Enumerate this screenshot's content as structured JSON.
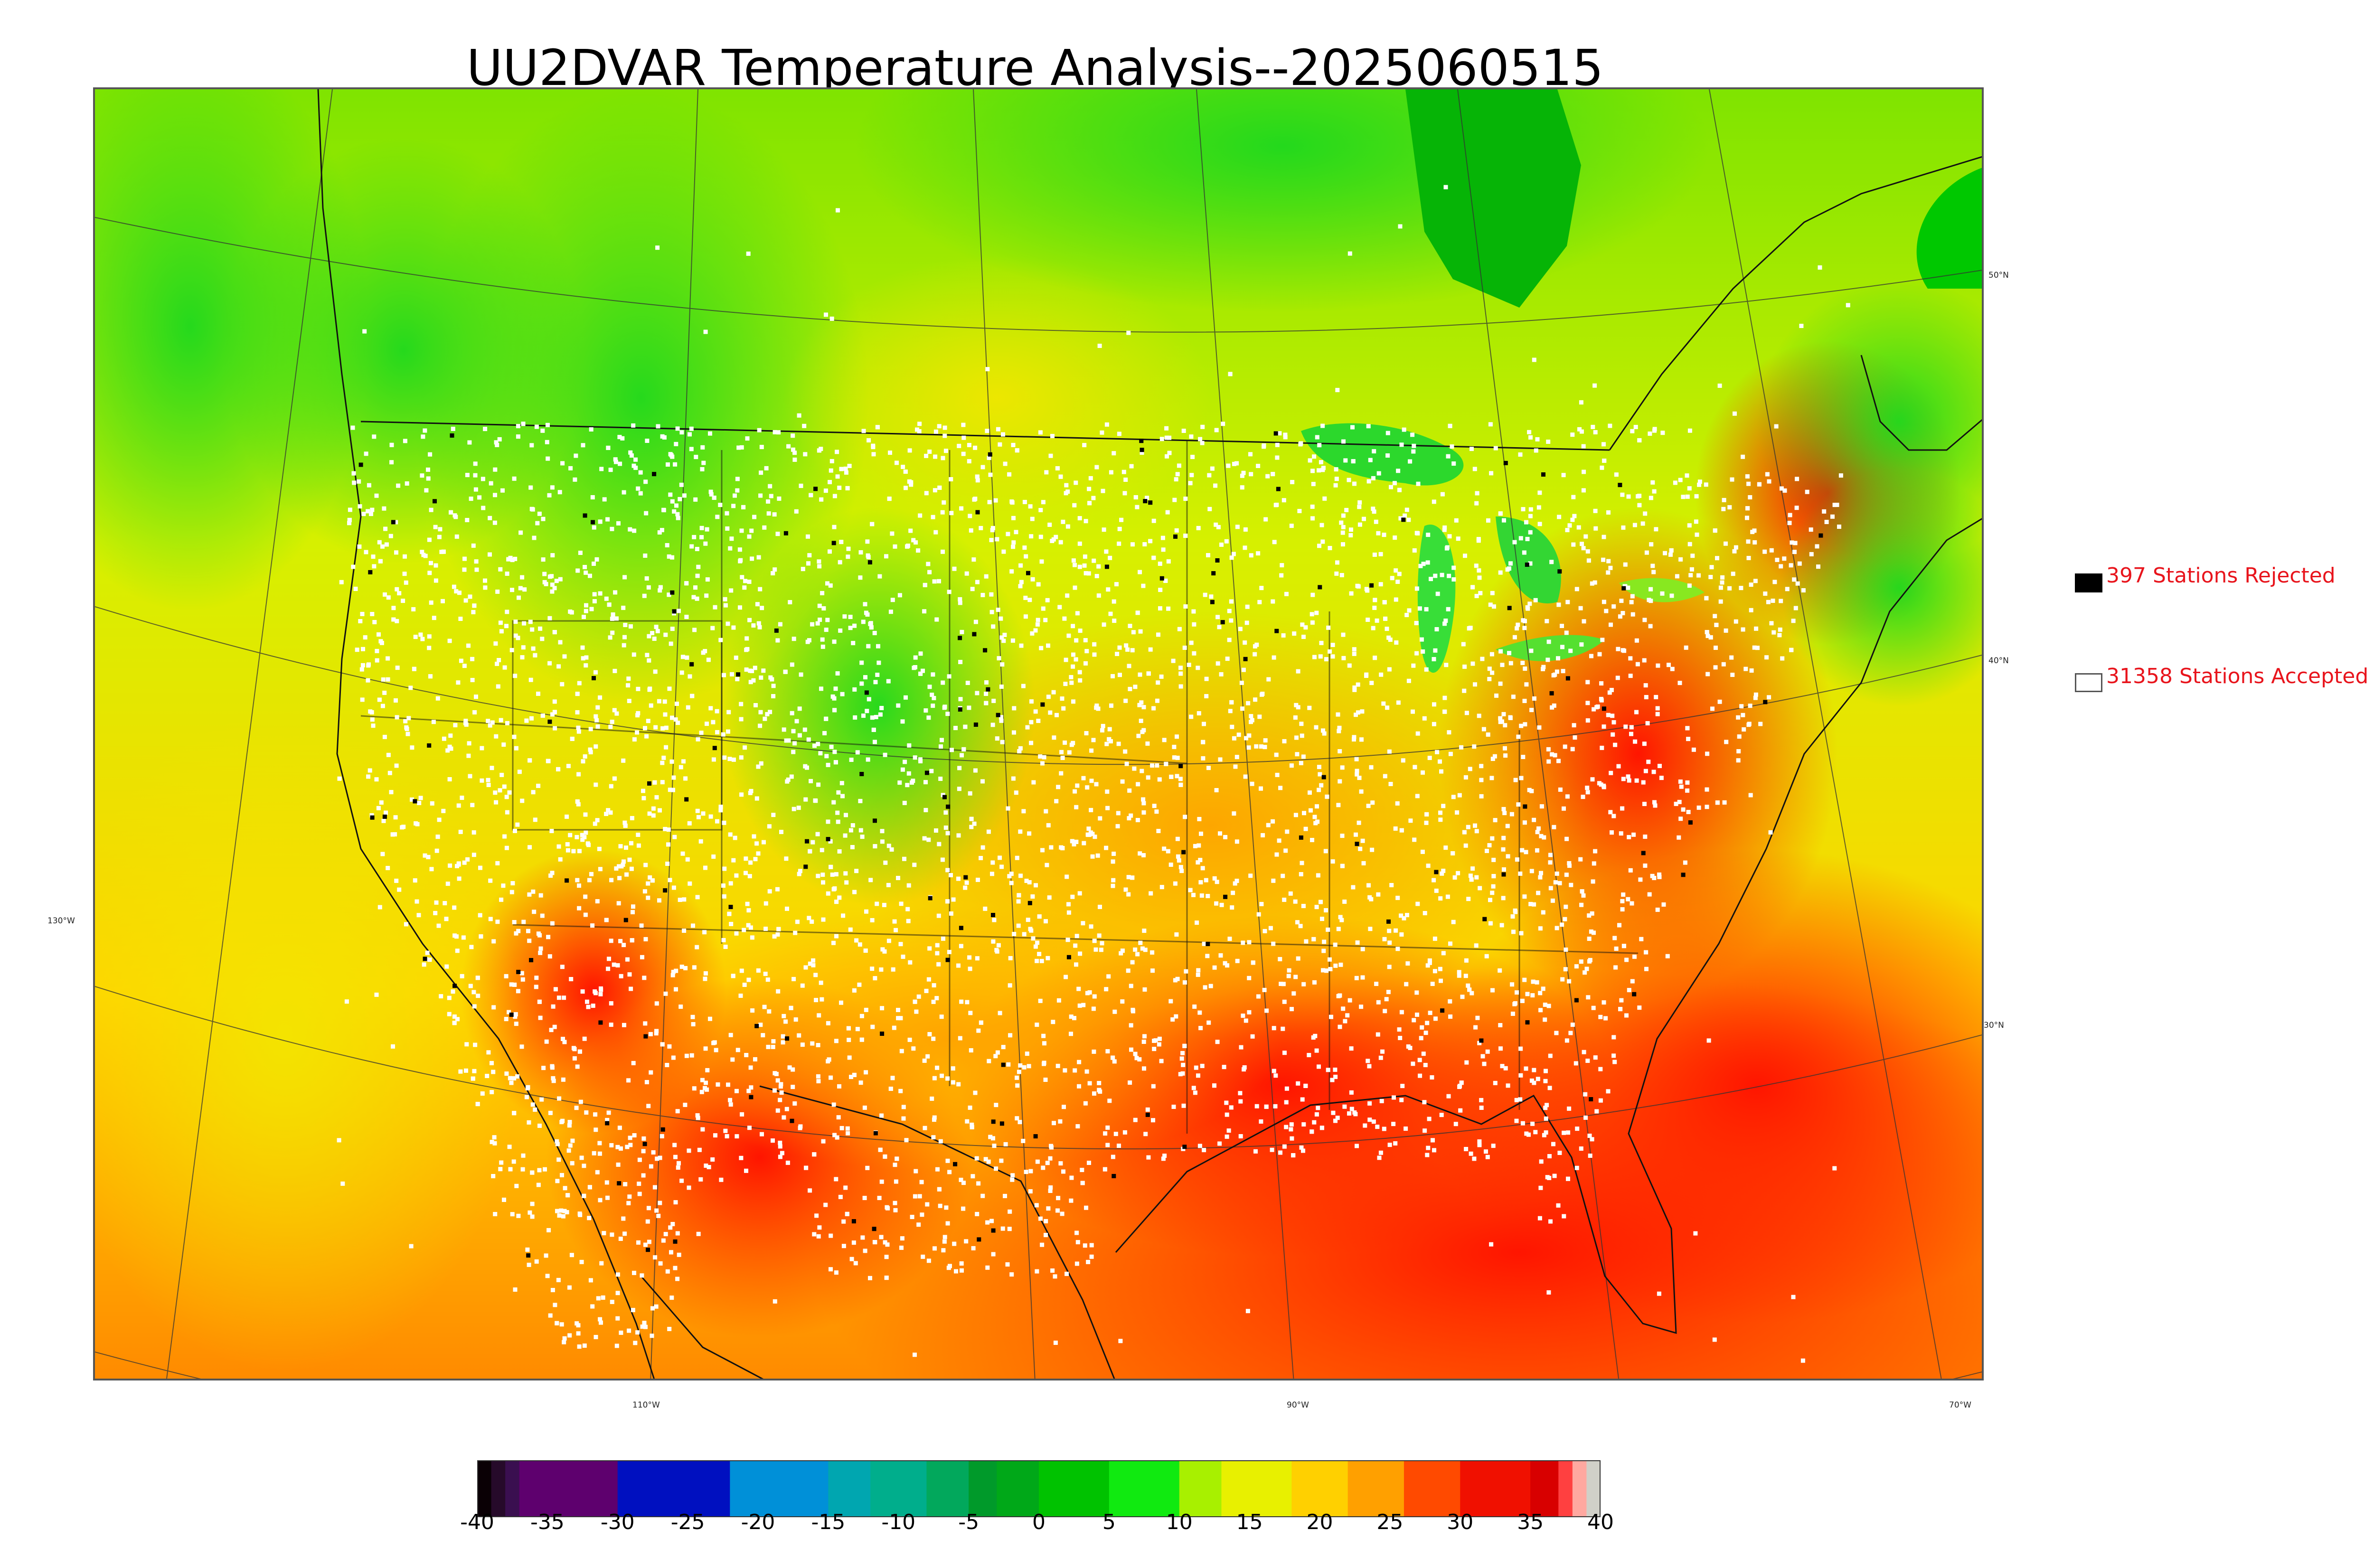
{
  "title": "UU2DVAR Temperature Analysis--2025060515",
  "map": {
    "latitude_labels": [
      {
        "text": "50°N"
      },
      {
        "text": "40°N"
      },
      {
        "text": "30°N"
      }
    ],
    "longitude_labels": [
      {
        "text": "110°W"
      },
      {
        "text": "90°W"
      },
      {
        "text": "70°W"
      },
      {
        "text": "130°W"
      }
    ],
    "colors": {
      "cool": "#2fd52a",
      "mild": "#d4f000",
      "warm": "#ffb000",
      "hot": "#ff1a00",
      "water_cold": "#00b800",
      "station_accepted": "#ffffff",
      "station_rejected": "#000000"
    }
  },
  "legend": {
    "rejected": {
      "count": 397,
      "label": "397 Stations Rejected",
      "swatch_color": "#000000"
    },
    "accepted": {
      "count": 31358,
      "label": "31358 Stations Accepted",
      "swatch_color": "#ffffff"
    }
  },
  "colorbar": {
    "min": -40,
    "max": 40,
    "ticks": [
      "-40",
      "-35",
      "-30",
      "-25",
      "-20",
      "-15",
      "-10",
      "-5",
      "0",
      "5",
      "10",
      "15",
      "20",
      "25",
      "30",
      "35",
      "40"
    ],
    "bands": [
      {
        "from": -40,
        "to": -39,
        "color": "#0a0005"
      },
      {
        "from": -39,
        "to": -38,
        "color": "#260a2a"
      },
      {
        "from": -38,
        "to": -37,
        "color": "#3a0f50"
      },
      {
        "from": -37,
        "to": -30,
        "color": "#5e006e"
      },
      {
        "from": -30,
        "to": -22,
        "color": "#0010c0"
      },
      {
        "from": -22,
        "to": -15,
        "color": "#0090d8"
      },
      {
        "from": -15,
        "to": -12,
        "color": "#00a6b0"
      },
      {
        "from": -12,
        "to": -8,
        "color": "#00ae8c"
      },
      {
        "from": -8,
        "to": -5,
        "color": "#02a85c"
      },
      {
        "from": -5,
        "to": -3,
        "color": "#009a2a"
      },
      {
        "from": -3,
        "to": 0,
        "color": "#00a818"
      },
      {
        "from": 0,
        "to": 5,
        "color": "#00c200"
      },
      {
        "from": 5,
        "to": 10,
        "color": "#10ea10"
      },
      {
        "from": 10,
        "to": 13,
        "color": "#a8f000"
      },
      {
        "from": 13,
        "to": 18,
        "color": "#e8f000"
      },
      {
        "from": 18,
        "to": 22,
        "color": "#ffd000"
      },
      {
        "from": 22,
        "to": 26,
        "color": "#ffa000"
      },
      {
        "from": 26,
        "to": 30,
        "color": "#ff4a00"
      },
      {
        "from": 30,
        "to": 35,
        "color": "#f01000"
      },
      {
        "from": 35,
        "to": 37,
        "color": "#d80000"
      },
      {
        "from": 37,
        "to": 38,
        "color": "#ff4040"
      },
      {
        "from": 38,
        "to": 39,
        "color": "#ffa8a0"
      },
      {
        "from": 39,
        "to": 40,
        "color": "#d0d0c8"
      }
    ]
  }
}
